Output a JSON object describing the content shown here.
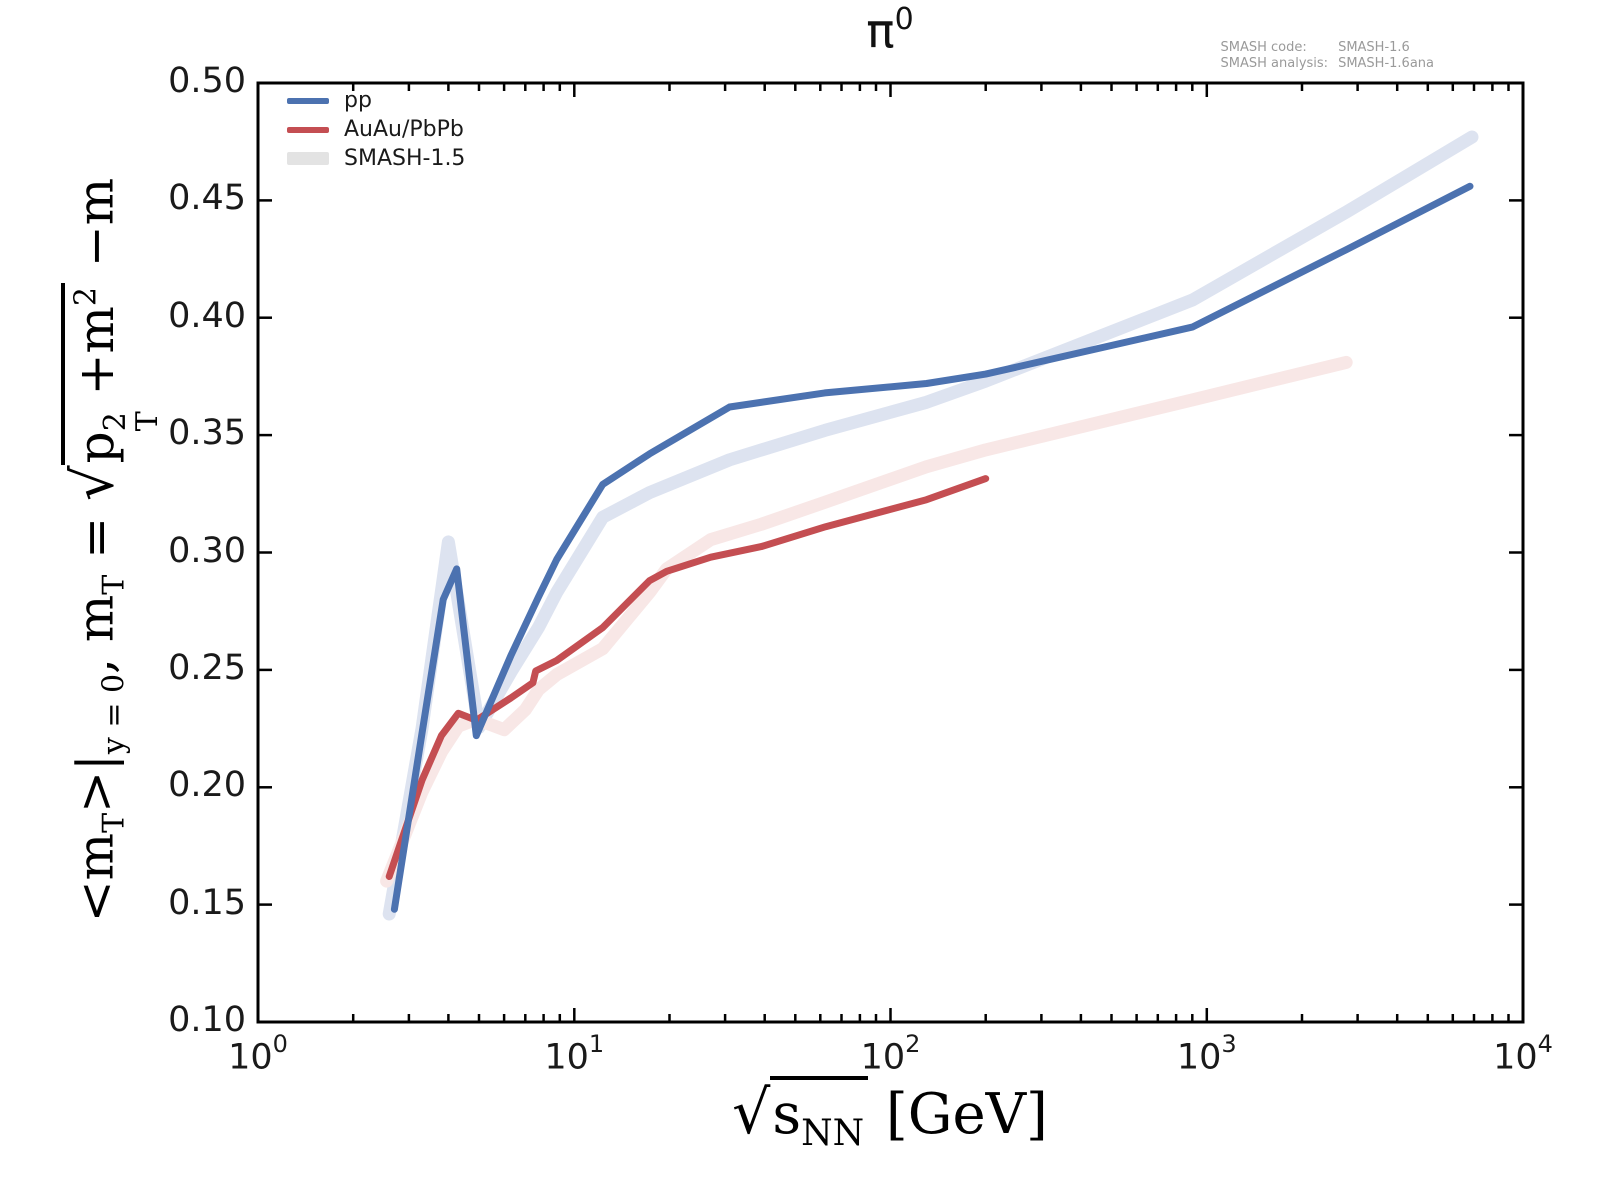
{
  "title": {
    "base": "π",
    "exp": "0"
  },
  "watermark": {
    "line1_label": "SMASH code:",
    "line1_value": "SMASH-1.6",
    "line2_label": "SMASH analysis:",
    "line2_value": "SMASH-1.6ana"
  },
  "axes": {
    "xlabel_parts": {
      "rad": "√",
      "s": "s",
      "snn": "NN",
      "unit": " [GeV]"
    },
    "ylabel_parts": {
      "open": "<m",
      "sub1": "T",
      "close": ">|",
      "cond": "y = 0",
      "mid": ", m",
      "sub2": "T",
      "eq": " = ",
      "rad": "√",
      "p": "p",
      "psup": "2",
      "psub": "T",
      "plus": " +m",
      "msup": "2",
      "tail": " −m"
    }
  },
  "chart_data": {
    "type": "line",
    "title": "π0 (neutral pion)",
    "xlabel": "sqrt(s_NN) [GeV]",
    "ylabel": "<m_T>|_{y=0},  m_T = sqrt(p_T^2 + m^2) − m",
    "x_scale": "log",
    "xlim": [
      1,
      10000
    ],
    "ylim": [
      0.1,
      0.5
    ],
    "grid": false,
    "x_ticks": [
      {
        "v": 1,
        "base": "10",
        "exp": "0"
      },
      {
        "v": 10,
        "base": "10",
        "exp": "1"
      },
      {
        "v": 100,
        "base": "10",
        "exp": "2"
      },
      {
        "v": 1000,
        "base": "10",
        "exp": "3"
      },
      {
        "v": 10000,
        "base": "10",
        "exp": "4"
      }
    ],
    "x_minor_subs": [
      2,
      3,
      4,
      5,
      6,
      7,
      8,
      9
    ],
    "y_ticks": [
      {
        "v": 0.1,
        "label": "0.10"
      },
      {
        "v": 0.15,
        "label": "0.15"
      },
      {
        "v": 0.2,
        "label": "0.20"
      },
      {
        "v": 0.25,
        "label": "0.25"
      },
      {
        "v": 0.3,
        "label": "0.30"
      },
      {
        "v": 0.35,
        "label": "0.35"
      },
      {
        "v": 0.4,
        "label": "0.40"
      },
      {
        "v": 0.45,
        "label": "0.45"
      },
      {
        "v": 0.5,
        "label": "0.50"
      }
    ],
    "legend": {
      "position": "upper-left",
      "entries": [
        {
          "label": "pp",
          "color": "#4c72b0",
          "thickness": 6
        },
        {
          "label": "AuAu/PbPb",
          "color": "#c44e52",
          "thickness": 6
        },
        {
          "label": "SMASH-1.5",
          "color": "#e3e3e3",
          "thickness": 13
        }
      ]
    },
    "series": [
      {
        "name": "SMASH-1.5 pp",
        "color": "#dde3f0",
        "width": 13,
        "points": [
          [
            2.6,
            0.146
          ],
          [
            3.3,
            0.225
          ],
          [
            4.0,
            0.3045
          ],
          [
            5.0,
            0.2255
          ],
          [
            6.3,
            0.249
          ],
          [
            7.7,
            0.268
          ],
          [
            8.8,
            0.283
          ],
          [
            12.3,
            0.315
          ],
          [
            17.3,
            0.3255
          ],
          [
            31,
            0.3395
          ],
          [
            62,
            0.352
          ],
          [
            130,
            0.364
          ],
          [
            200,
            0.373
          ],
          [
            900,
            0.4075
          ],
          [
            2760,
            0.445
          ],
          [
            6900,
            0.477
          ]
        ]
      },
      {
        "name": "SMASH-1.5 AuAu/PbPb",
        "color": "#f8e7e6",
        "width": 13,
        "points": [
          [
            2.55,
            0.16
          ],
          [
            3.3,
            0.198
          ],
          [
            3.8,
            0.215
          ],
          [
            4.3,
            0.226
          ],
          [
            4.9,
            0.229
          ],
          [
            6.0,
            0.2245
          ],
          [
            7.0,
            0.233
          ],
          [
            7.7,
            0.2415
          ],
          [
            8.8,
            0.248
          ],
          [
            12.3,
            0.259
          ],
          [
            17.3,
            0.283
          ],
          [
            19.6,
            0.293
          ],
          [
            27,
            0.3055
          ],
          [
            39,
            0.312
          ],
          [
            62.4,
            0.3215
          ],
          [
            130,
            0.3365
          ],
          [
            200,
            0.3437
          ],
          [
            900,
            0.365
          ],
          [
            2760,
            0.381
          ]
        ]
      },
      {
        "name": "AuAu/PbPb",
        "color": "#c44e52",
        "width": 7,
        "points": [
          [
            2.6,
            0.162
          ],
          [
            3.3,
            0.203
          ],
          [
            3.8,
            0.222
          ],
          [
            4.3,
            0.2315
          ],
          [
            4.9,
            0.2285
          ],
          [
            6.3,
            0.238
          ],
          [
            7.4,
            0.2445
          ],
          [
            7.55,
            0.2495
          ],
          [
            8.8,
            0.254
          ],
          [
            12.3,
            0.268
          ],
          [
            17.3,
            0.288
          ],
          [
            19.6,
            0.292
          ],
          [
            27,
            0.298
          ],
          [
            39,
            0.3025
          ],
          [
            62.4,
            0.311
          ],
          [
            130,
            0.3225
          ],
          [
            200,
            0.3315
          ]
        ]
      },
      {
        "name": "pp",
        "color": "#4c72b0",
        "width": 7,
        "points": [
          [
            2.7,
            0.148
          ],
          [
            3.3,
            0.223
          ],
          [
            3.85,
            0.28
          ],
          [
            4.25,
            0.293
          ],
          [
            4.9,
            0.222
          ],
          [
            6.3,
            0.256
          ],
          [
            7.7,
            0.281
          ],
          [
            8.8,
            0.297
          ],
          [
            12.3,
            0.329
          ],
          [
            17.3,
            0.342
          ],
          [
            31,
            0.362
          ],
          [
            62,
            0.368
          ],
          [
            130,
            0.372
          ],
          [
            200,
            0.376
          ],
          [
            900,
            0.396
          ],
          [
            2760,
            0.429
          ],
          [
            6800,
            0.456
          ]
        ]
      }
    ]
  }
}
